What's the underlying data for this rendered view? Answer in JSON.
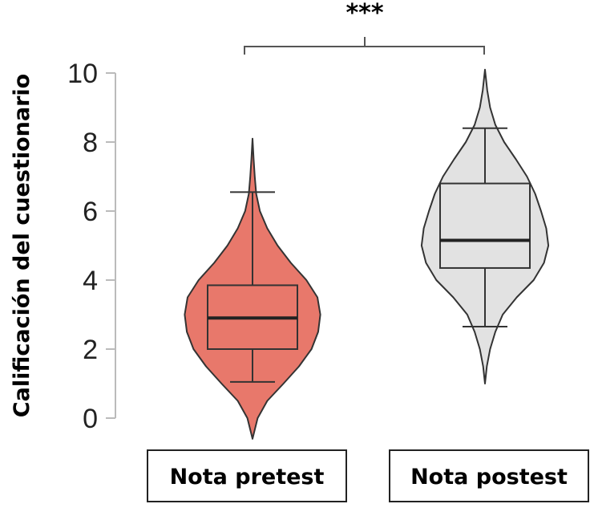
{
  "chart_data": {
    "type": "violin",
    "ylabel": "Calificación del cuestionario",
    "ylim": [
      0,
      10
    ],
    "yticks": [
      0,
      2,
      4,
      6,
      8,
      10
    ],
    "categories": [
      "Nota pretest",
      "Nota postest"
    ],
    "series": [
      {
        "category": "Nota pretest",
        "color": "#e8786b",
        "min": 1.05,
        "q1": 2.0,
        "median": 2.9,
        "q3": 3.85,
        "max": 6.55,
        "violin_range": [
          -0.6,
          8.1
        ],
        "density": [
          [
            -0.6,
            0.0
          ],
          [
            0,
            0.07
          ],
          [
            0.5,
            0.2
          ],
          [
            1,
            0.42
          ],
          [
            1.5,
            0.63
          ],
          [
            2,
            0.8
          ],
          [
            2.5,
            0.89
          ],
          [
            3,
            0.92
          ],
          [
            3.5,
            0.88
          ],
          [
            4,
            0.73
          ],
          [
            4.5,
            0.52
          ],
          [
            5,
            0.34
          ],
          [
            5.5,
            0.2
          ],
          [
            6,
            0.1
          ],
          [
            6.5,
            0.05
          ],
          [
            7,
            0.03
          ],
          [
            7.5,
            0.015
          ],
          [
            8.1,
            0.0
          ]
        ]
      },
      {
        "category": "Nota postest",
        "color": "#e2e2e2",
        "min": 2.65,
        "q1": 4.35,
        "median": 5.15,
        "q3": 6.8,
        "max": 8.4,
        "violin_range": [
          1.0,
          10.1
        ],
        "density": [
          [
            1.0,
            0.0
          ],
          [
            1.5,
            0.025
          ],
          [
            2,
            0.07
          ],
          [
            2.5,
            0.14
          ],
          [
            3,
            0.24
          ],
          [
            3.5,
            0.43
          ],
          [
            4,
            0.66
          ],
          [
            4.5,
            0.8
          ],
          [
            5,
            0.86
          ],
          [
            5.5,
            0.83
          ],
          [
            6,
            0.76
          ],
          [
            6.5,
            0.68
          ],
          [
            7,
            0.57
          ],
          [
            7.5,
            0.42
          ],
          [
            8,
            0.26
          ],
          [
            8.5,
            0.14
          ],
          [
            9,
            0.07
          ],
          [
            9.5,
            0.03
          ],
          [
            10.1,
            0.0
          ]
        ]
      }
    ],
    "annotation": {
      "text": "***",
      "between": [
        "Nota pretest",
        "Nota postest"
      ]
    }
  }
}
